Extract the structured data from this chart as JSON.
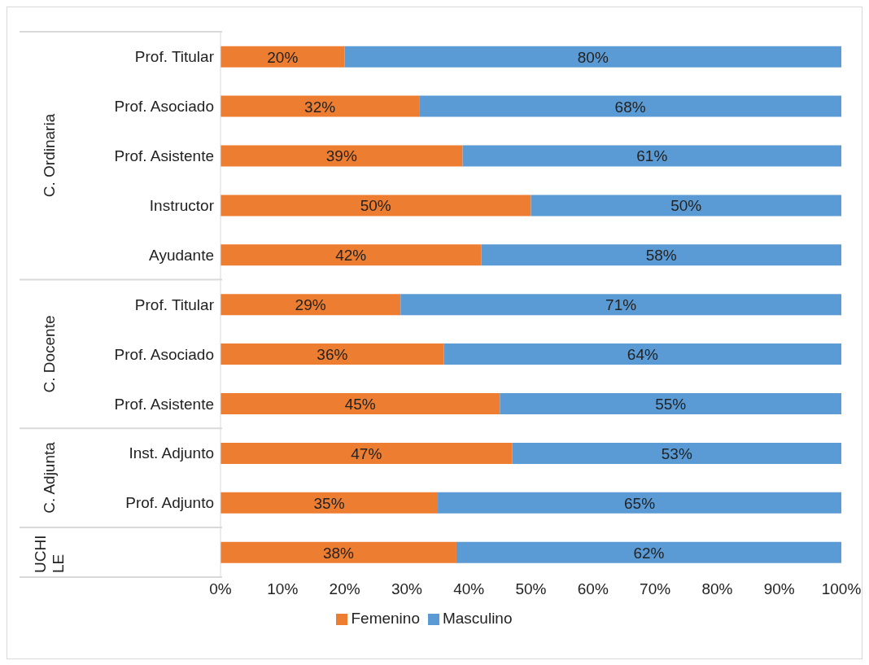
{
  "chart_data": {
    "type": "bar",
    "orientation": "horizontal",
    "stacked": true,
    "categories": [
      "Prof. Titular",
      "Prof. Asociado",
      "Prof. Asistente",
      "Instructor",
      "Ayudante",
      "Prof. Titular",
      "Prof. Asociado",
      "Prof. Asistente",
      "Inst. Adjunto",
      "Prof. Adjunto",
      null
    ],
    "series": [
      {
        "name": "Femenino",
        "color": "#ed7d31",
        "values": [
          20,
          32,
          39,
          50,
          42,
          29,
          36,
          45,
          47,
          35,
          38
        ],
        "value_labels": [
          "20%",
          "32%",
          "39%",
          "50%",
          "42%",
          "29%",
          "36%",
          "45%",
          "47%",
          "35%",
          "38%"
        ]
      },
      {
        "name": "Masculino",
        "color": "#5b9bd5",
        "values": [
          80,
          68,
          61,
          50,
          58,
          71,
          64,
          55,
          53,
          65,
          62
        ],
        "value_labels": [
          "80%",
          "68%",
          "61%",
          "50%",
          "58%",
          "71%",
          "64%",
          "55%",
          "53%",
          "65%",
          "62%"
        ]
      }
    ],
    "xlim": [
      0,
      100
    ],
    "xticks": [
      {
        "value": 0,
        "label": "0%"
      },
      {
        "value": 10,
        "label": "10%"
      },
      {
        "value": 20,
        "label": "20%"
      },
      {
        "value": 30,
        "label": "30%"
      },
      {
        "value": 40,
        "label": "40%"
      },
      {
        "value": 50,
        "label": "50%"
      },
      {
        "value": 60,
        "label": "60%"
      },
      {
        "value": 70,
        "label": "70%"
      },
      {
        "value": 80,
        "label": "80%"
      },
      {
        "value": 90,
        "label": "90%"
      },
      {
        "value": 100,
        "label": "100%"
      }
    ],
    "annotations": [
      "C. Ordinaria",
      "C. Docente",
      "C. Adjunta",
      "UCHILE"
    ],
    "legend": "bottom"
  }
}
